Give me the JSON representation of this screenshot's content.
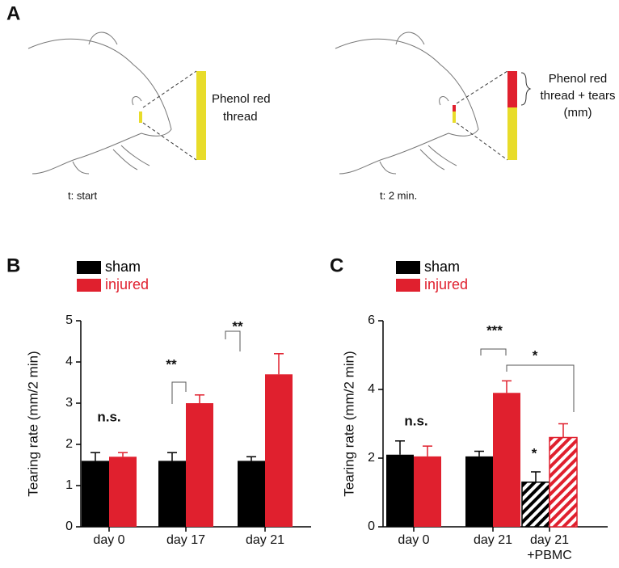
{
  "panel_labels": [
    "A",
    "B",
    "C"
  ],
  "panel_a": {
    "left_label": [
      "Phenol red",
      "thread"
    ],
    "left_time": "t: start",
    "right_label": [
      "Phenol red",
      "thread + tears",
      "(mm)"
    ],
    "right_time": "t: 2 min."
  },
  "chart_data": [
    {
      "type": "bar",
      "ylabel": "Tearing rate (mm/2 min)",
      "categories": [
        "day 0",
        "day 17",
        "day 21"
      ],
      "series": [
        {
          "name": "sham",
          "color": "#000000",
          "values": [
            1.6,
            1.6,
            1.6
          ],
          "errors": [
            0.2,
            0.2,
            0.1
          ]
        },
        {
          "name": "injured",
          "color": "#e0202e",
          "values": [
            1.7,
            3.0,
            3.7
          ],
          "errors": [
            0.1,
            0.2,
            0.5
          ]
        }
      ],
      "hatched": [
        false,
        false,
        false
      ],
      "ylim": [
        0,
        5
      ],
      "yticks": [
        0,
        1,
        2,
        3,
        4,
        5
      ],
      "annotations": [
        "n.s.",
        "**",
        "**"
      ]
    },
    {
      "type": "bar",
      "ylabel": "Tearing rate (mm/2 min)",
      "categories": [
        "day 0",
        "day 21",
        "day 21\n+PBMC"
      ],
      "series": [
        {
          "name": "sham",
          "color": "#000000",
          "values": [
            2.1,
            2.05,
            1.3
          ],
          "errors": [
            0.4,
            0.15,
            0.3
          ]
        },
        {
          "name": "injured",
          "color": "#e0202e",
          "values": [
            2.05,
            3.9,
            2.6
          ],
          "errors": [
            0.3,
            0.35,
            0.4
          ]
        }
      ],
      "hatched": [
        false,
        false,
        true
      ],
      "ylim": [
        0,
        6
      ],
      "yticks": [
        0,
        2,
        4,
        6
      ],
      "annotations": [
        "n.s.",
        "***",
        "*",
        "*"
      ]
    }
  ]
}
